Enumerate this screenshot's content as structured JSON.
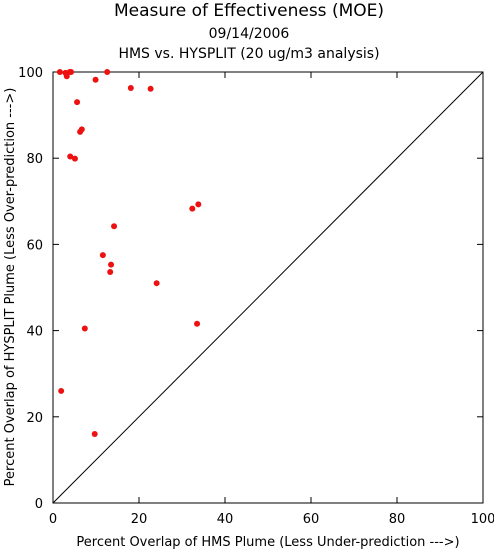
{
  "chart_data": {
    "type": "scatter",
    "title": "Measure of Effectiveness (MOE)",
    "subtitle_lines": [
      "09/14/2006",
      "HMS vs. HYSPLIT  (20 ug/m3 analysis)"
    ],
    "xlabel": "Percent Overlap of HMS Plume (Less Under-prediction --->)",
    "ylabel": "Percent Overlap of HYSPLIT Plume (Less Over-prediction --->)",
    "xlim": [
      0,
      100
    ],
    "ylim": [
      0,
      100
    ],
    "x_ticks": [
      0,
      20,
      40,
      60,
      80,
      100
    ],
    "y_ticks": [
      0,
      20,
      40,
      60,
      80,
      100
    ],
    "grid": false,
    "reference_line": "diagonal",
    "point_color": "#ee1111",
    "points": [
      {
        "x": 1.6,
        "y": 100.0
      },
      {
        "x": 2.9,
        "y": 99.8
      },
      {
        "x": 3.2,
        "y": 99.0
      },
      {
        "x": 3.9,
        "y": 100.0
      },
      {
        "x": 4.2,
        "y": 100.0
      },
      {
        "x": 9.9,
        "y": 98.2
      },
      {
        "x": 12.6,
        "y": 100.0
      },
      {
        "x": 18.1,
        "y": 96.3
      },
      {
        "x": 22.7,
        "y": 96.1
      },
      {
        "x": 5.6,
        "y": 93.0
      },
      {
        "x": 6.7,
        "y": 86.7
      },
      {
        "x": 6.3,
        "y": 86.1
      },
      {
        "x": 4.0,
        "y": 80.4
      },
      {
        "x": 5.1,
        "y": 79.9
      },
      {
        "x": 32.4,
        "y": 68.3
      },
      {
        "x": 33.8,
        "y": 69.3
      },
      {
        "x": 14.2,
        "y": 64.2
      },
      {
        "x": 11.6,
        "y": 57.5
      },
      {
        "x": 13.5,
        "y": 55.3
      },
      {
        "x": 13.3,
        "y": 53.6
      },
      {
        "x": 24.1,
        "y": 51.0
      },
      {
        "x": 33.5,
        "y": 41.6
      },
      {
        "x": 7.4,
        "y": 40.5
      },
      {
        "x": 1.9,
        "y": 26.0
      },
      {
        "x": 9.7,
        "y": 16.0
      }
    ]
  }
}
